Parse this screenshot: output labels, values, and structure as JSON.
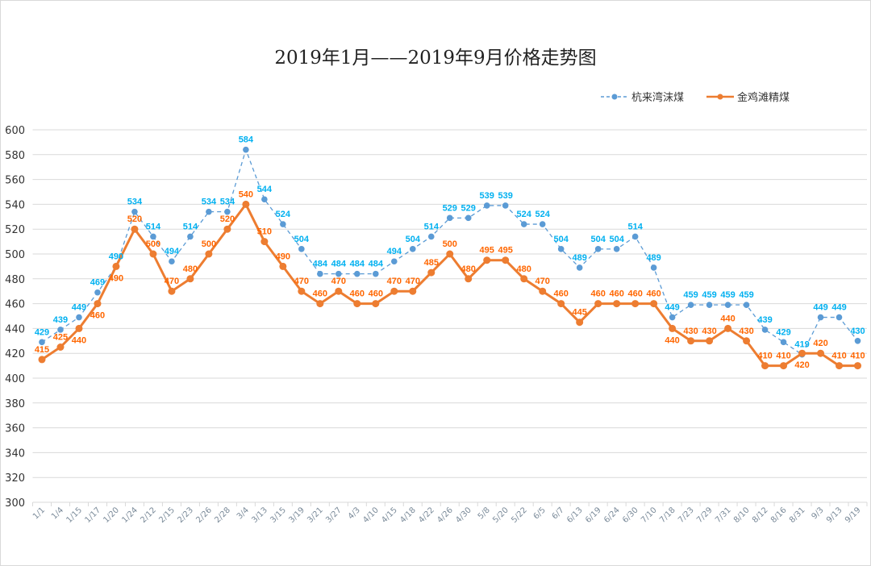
{
  "chart_data": {
    "type": "line",
    "title": "2019年1月——2019年9月价格走势图",
    "xlabel": "",
    "ylabel": "",
    "ylim": [
      300,
      600
    ],
    "ytick_step": 20,
    "grid": true,
    "legend_position": "top-right",
    "categories": [
      "1/1",
      "1/4",
      "1/15",
      "1/17",
      "1/20",
      "1/24",
      "2/12",
      "2/15",
      "2/23",
      "2/26",
      "2/28",
      "3/4",
      "3/13",
      "3/15",
      "3/19",
      "3/21",
      "3/27",
      "4/3",
      "4/10",
      "4/15",
      "4/18",
      "4/22",
      "4/26",
      "4/30",
      "5/8",
      "5/20",
      "5/22",
      "6/5",
      "6/7",
      "6/13",
      "6/19",
      "6/24",
      "6/30",
      "7/10",
      "7/18",
      "7/23",
      "7/29",
      "7/31",
      "8/10",
      "8/12",
      "8/16",
      "8/31",
      "9/3",
      "9/13",
      "9/19"
    ],
    "series": [
      {
        "name": "杭来湾沫煤",
        "line_color": "#5B9BD5",
        "label_color": "#00B0F0",
        "style": "dashed",
        "values": [
          429,
          439,
          449,
          469,
          490,
          534,
          514,
          494,
          514,
          534,
          534,
          584,
          544,
          524,
          504,
          484,
          484,
          484,
          484,
          494,
          504,
          514,
          529,
          529,
          539,
          539,
          524,
          524,
          504,
          489,
          504,
          504,
          514,
          489,
          449,
          459,
          459,
          459,
          459,
          439,
          429,
          419,
          449,
          449,
          430
        ]
      },
      {
        "name": "金鸡滩精煤",
        "line_color": "#ED7D31",
        "label_color": "#FF6600",
        "style": "solid",
        "values": [
          415,
          425,
          440,
          460,
          490,
          520,
          500,
          470,
          480,
          500,
          520,
          540,
          510,
          490,
          470,
          460,
          470,
          460,
          460,
          470,
          470,
          485,
          500,
          480,
          495,
          495,
          480,
          470,
          460,
          445,
          460,
          460,
          460,
          460,
          440,
          430,
          430,
          440,
          430,
          410,
          410,
          420,
          420,
          410,
          410
        ]
      }
    ]
  }
}
